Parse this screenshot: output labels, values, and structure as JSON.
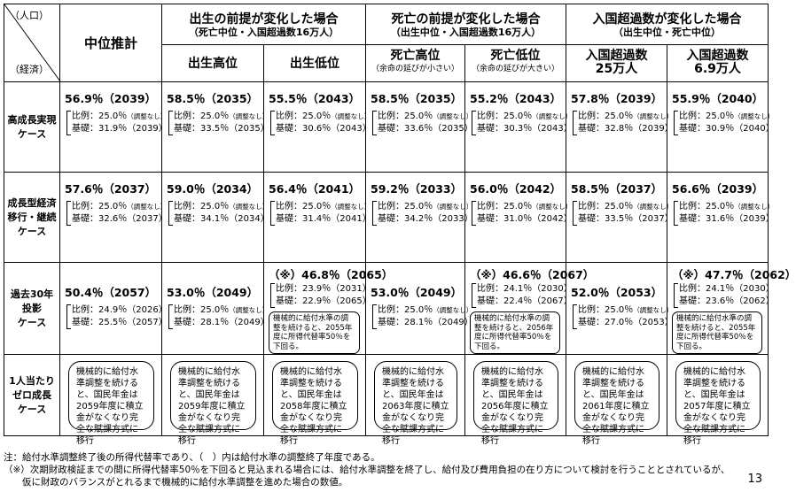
{
  "corner": {
    "top": "（人口）",
    "bottom": "（経済）"
  },
  "central": "中位推計",
  "groups": [
    {
      "title": "出生の前提が変化した場合",
      "sub": "（死亡中位・入国超過数16万人）"
    },
    {
      "title": "死亡の前提が変化した場合",
      "sub": "（出生中位・入国超過数16万人）"
    },
    {
      "title": "入国超過数が変化した場合",
      "sub": "（出生中位・死亡中位）"
    }
  ],
  "subs": [
    {
      "main": "出生高位",
      "note": ""
    },
    {
      "main": "出生低位",
      "note": ""
    },
    {
      "main": "死亡高位",
      "note": "（余命の延びが小さい）"
    },
    {
      "main": "死亡低位",
      "note": "（余命の延びが大きい）"
    },
    {
      "main": "入国超過数25万人",
      "line1": "入国超過数",
      "line2": "25万人",
      "note": ""
    },
    {
      "main": "入国超過数6.9万人",
      "line1": "入国超過数",
      "line2": "6.9万人",
      "note": ""
    }
  ],
  "rows": [
    {
      "label": [
        "高成長実現",
        "ケース"
      ],
      "cells": [
        {
          "value": "56.9％（2039）",
          "ratio": "比例：25.0％",
          "ratio_note": "（調整なし）",
          "base": "基礎：31.9％（2039）"
        },
        {
          "value": "58.5％（2035）",
          "ratio": "比例：25.0％",
          "ratio_note": "（調整なし）",
          "base": "基礎：33.5％（2035）"
        },
        {
          "value": "55.5％（2043）",
          "ratio": "比例：25.0％",
          "ratio_note": "（調整なし）",
          "base": "基礎：30.6％（2043）"
        },
        {
          "value": "58.5％（2035）",
          "ratio": "比例：25.0％",
          "ratio_note": "（調整なし）",
          "base": "基礎：33.6％（2035）"
        },
        {
          "value": "55.2％（2043）",
          "ratio": "比例：25.0％",
          "ratio_note": "（調整なし）",
          "base": "基礎：30.3％（2043）"
        },
        {
          "value": "57.8％（2039）",
          "ratio": "比例：25.0％",
          "ratio_note": "（調整なし）",
          "base": "基礎：32.8％（2039）"
        },
        {
          "value": "55.9％（2040）",
          "ratio": "比例：25.0％",
          "ratio_note": "（調整なし）",
          "base": "基礎：30.9％（2040）"
        }
      ]
    },
    {
      "label": [
        "成長型経済",
        "移行・継続",
        "ケース"
      ],
      "cells": [
        {
          "value": "57.6％（2037）",
          "ratio": "比例：25.0％",
          "ratio_note": "（調整なし）",
          "base": "基礎：32.6％（2037）"
        },
        {
          "value": "59.0％（2034）",
          "ratio": "比例：25.0％",
          "ratio_note": "（調整なし）",
          "base": "基礎：34.1％（2034）"
        },
        {
          "value": "56.4％（2041）",
          "ratio": "比例：25.0％",
          "ratio_note": "（調整なし）",
          "base": "基礎：31.4％（2041）"
        },
        {
          "value": "59.2％（2033）",
          "ratio": "比例：25.0％",
          "ratio_note": "（調整なし）",
          "base": "基礎：34.2％（2033）"
        },
        {
          "value": "56.0％（2042）",
          "ratio": "比例：25.0％",
          "ratio_note": "（調整なし）",
          "base": "基礎：31.0％（2042）"
        },
        {
          "value": "58.5％（2037）",
          "ratio": "比例：25.0％",
          "ratio_note": "（調整なし）",
          "base": "基礎：33.5％（2037）"
        },
        {
          "value": "56.6％（2039）",
          "ratio": "比例：25.0％",
          "ratio_note": "（調整なし）",
          "base": "基礎：31.6％（2039）"
        }
      ]
    },
    {
      "label": [
        "過去30年",
        "投影",
        "ケース"
      ],
      "cells": [
        {
          "value": "50.4％（2057）",
          "ratio": "比例：24.9％（2026）",
          "ratio_note": "",
          "base": "基礎：25.5％（2057）"
        },
        {
          "value": "53.0％（2049）",
          "ratio": "比例：25.0％",
          "ratio_note": "（調整なし）",
          "base": "基礎：28.1％（2049）"
        },
        {
          "value": "（※）46.8％（2065）",
          "ratio": "比例：23.9％（2031）",
          "ratio_note": "",
          "base": "基礎：22.9％（2065）",
          "note": "機械的に給付水準の調整を続けると、2055年度に所得代替率50％を下回る。"
        },
        {
          "value": "53.0％（2049）",
          "ratio": "比例：25.0％",
          "ratio_note": "（調整なし）",
          "base": "基礎：28.1％（2049）"
        },
        {
          "value": "（※）46.6％（2067）",
          "ratio": "比例：24.1％（2030）",
          "ratio_note": "",
          "base": "基礎：22.4％（2067）",
          "note": "機械的に給付水準の調整を続けると、2056年度に所得代替率50％を下回る。"
        },
        {
          "value": "52.0％（2053）",
          "ratio": "比例：25.0％",
          "ratio_note": "（調整なし）",
          "base": "基礎：27.0％（2053）"
        },
        {
          "value": "（※）47.7％（2062）",
          "ratio": "比例：24.1％（2030）",
          "ratio_note": "",
          "base": "基礎：23.6％（2062）",
          "note": "機械的に給付水準の調整を続けると、2055年度に所得代替率50％を下回る。"
        }
      ]
    },
    {
      "label": [
        "1人当たり",
        "ゼロ成長",
        "ケース"
      ],
      "cells": [
        {
          "box": "機械的に給付水準調整を続けると、国民年金は2059年度に積立金がなくなり完全な賦課方式に移行"
        },
        {
          "box": "機械的に給付水準調整を続けると、国民年金は2059年度に積立金がなくなり完全な賦課方式に移行"
        },
        {
          "box": "機械的に給付水準調整を続けると、国民年金は2058年度に積立金がなくなり完全な賦課方式に移行"
        },
        {
          "box": "機械的に給付水準調整を続けると、国民年金は2063年度に積立金がなくなり完全な賦課方式に移行"
        },
        {
          "box": "機械的に給付水準調整を続けると、国民年金は2056年度に積立金がなくなり完全な賦課方式に移行"
        },
        {
          "box": "機械的に給付水準調整を続けると、国民年金は2061年度に積立金がなくなり完全な賦課方式に移行"
        },
        {
          "box": "機械的に給付水準調整を続けると、国民年金は2057年度に積立金がなくなり完全な賦課方式に移行"
        }
      ]
    }
  ],
  "footnotes": [
    "注：給付水準調整終了後の所得代替率であり、（　）内は給付水準の調整終了年度である。",
    "（※）次期財政検証までの間に所得代替率50％を下回ると見込まれる場合には、給付水準調整を終了し、給付及び費用負担の在り方について検討を行うこととされているが、",
    "　　仮に財政のバランスがとれるまで機械的に給付水準調整を進めた場合の数値。"
  ],
  "page_number": "13"
}
